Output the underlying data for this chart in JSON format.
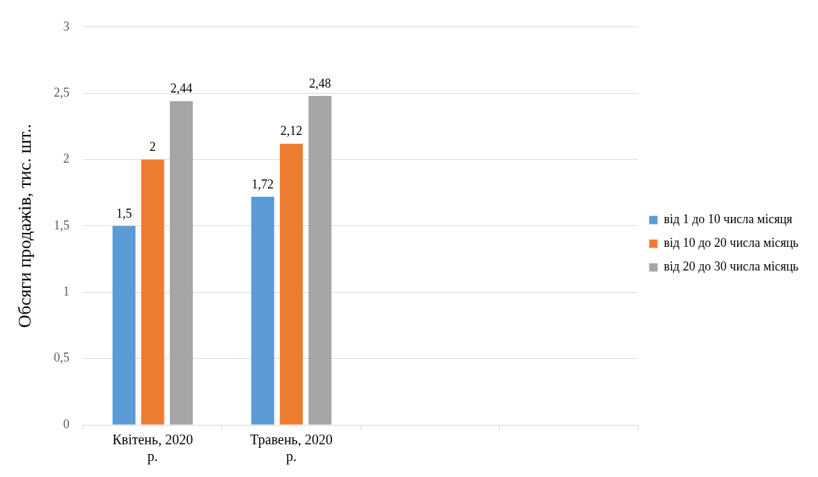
{
  "chart_data": {
    "type": "bar",
    "ylabel": "Обсяги продажів, тис. шт..",
    "categories": [
      "Квітень, 2020 р.",
      "Травень, 2020 р.",
      null,
      null
    ],
    "series": [
      {
        "name": "від 1 до 10 числа місяця",
        "color": "#5b9bd5",
        "values": [
          1.5,
          1.72,
          null,
          null
        ],
        "value_labels": [
          "1,5",
          "1,72",
          null,
          null
        ]
      },
      {
        "name": "від 10 до 20 числа місяць",
        "color": "#ed7d31",
        "values": [
          2,
          2.12,
          null,
          null
        ],
        "value_labels": [
          "2",
          "2,12",
          null,
          null
        ]
      },
      {
        "name": "від 20 до 30 числа місяць",
        "color": "#a5a5a5",
        "values": [
          2.44,
          2.48,
          null,
          null
        ],
        "value_labels": [
          "2,44",
          "2,48",
          null,
          null
        ]
      }
    ],
    "ylim": [
      0,
      3
    ],
    "yticks": [
      {
        "value": 0,
        "label": "0"
      },
      {
        "value": 0.5,
        "label": "0,5"
      },
      {
        "value": 1,
        "label": "1"
      },
      {
        "value": 1.5,
        "label": "1,5"
      },
      {
        "value": 2,
        "label": "2"
      },
      {
        "value": 2.5,
        "label": "2,5"
      },
      {
        "value": 3,
        "label": "3"
      }
    ],
    "grid": "y",
    "legend": "right"
  }
}
